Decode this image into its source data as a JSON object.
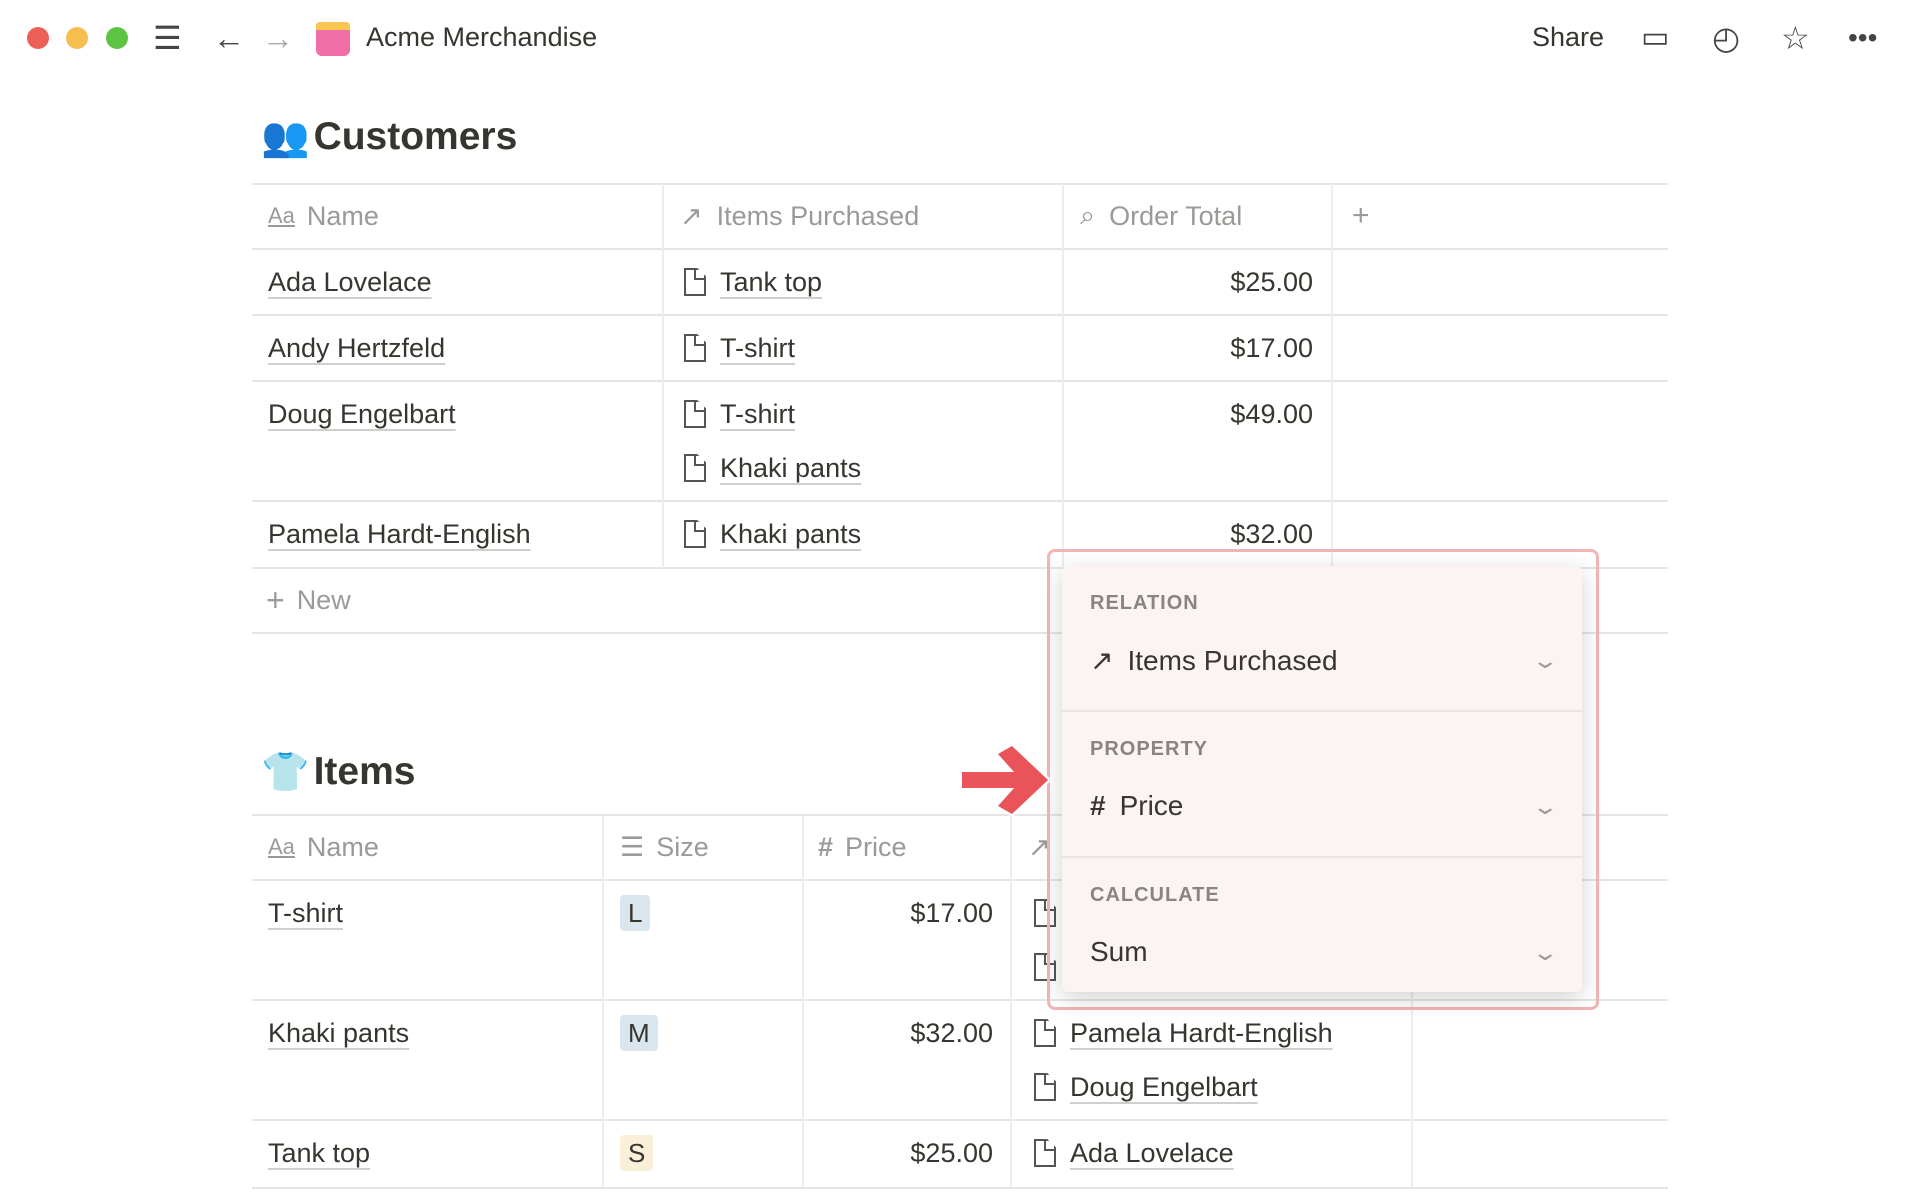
{
  "topbar": {
    "title": "Acme Merchandise",
    "share_label": "Share",
    "icons": [
      "menu-icon",
      "back-icon",
      "forward-icon",
      "shopping-bag-icon",
      "comment-icon",
      "history-icon",
      "star-icon",
      "more-icon"
    ]
  },
  "customers": {
    "title": "Customers",
    "columns": [
      "Name",
      "Items Purchased",
      "Order Total"
    ],
    "rows": [
      {
        "name": "Ada Lovelace",
        "items": [
          "Tank top"
        ],
        "total": "$25.00"
      },
      {
        "name": "Andy Hertzfeld",
        "items": [
          "T-shirt"
        ],
        "total": "$17.00"
      },
      {
        "name": "Doug Engelbart",
        "items": [
          "T-shirt",
          "Khaki pants"
        ],
        "total": "$49.00"
      },
      {
        "name": "Pamela Hardt-English",
        "items": [
          "Khaki pants"
        ],
        "total": "$32.00"
      }
    ],
    "new_label": "New"
  },
  "items": {
    "title": "Items",
    "columns": [
      "Name",
      "Size",
      "Price"
    ],
    "rows": [
      {
        "name": "T-shirt",
        "size": "L",
        "size_color": "#d9e6ee",
        "price": "$17.00",
        "customers": [
          "",
          ""
        ]
      },
      {
        "name": "Khaki pants",
        "size": "M",
        "size_color": "#d9e6ee",
        "price": "$32.00",
        "customers": [
          "Pamela Hardt-English",
          "Doug Engelbart"
        ]
      },
      {
        "name": "Tank top",
        "size": "S",
        "size_color": "#faefd9",
        "price": "$25.00",
        "customers": [
          "Ada Lovelace"
        ]
      }
    ]
  },
  "rollup_menu": {
    "relation_label": "RELATION",
    "relation_value": "Items Purchased",
    "property_label": "PROPERTY",
    "property_value": "Price",
    "calculate_label": "CALCULATE",
    "calculate_value": "Sum",
    "highlight_color": "#f1b5b5",
    "arrow_color": "#e8545a"
  }
}
